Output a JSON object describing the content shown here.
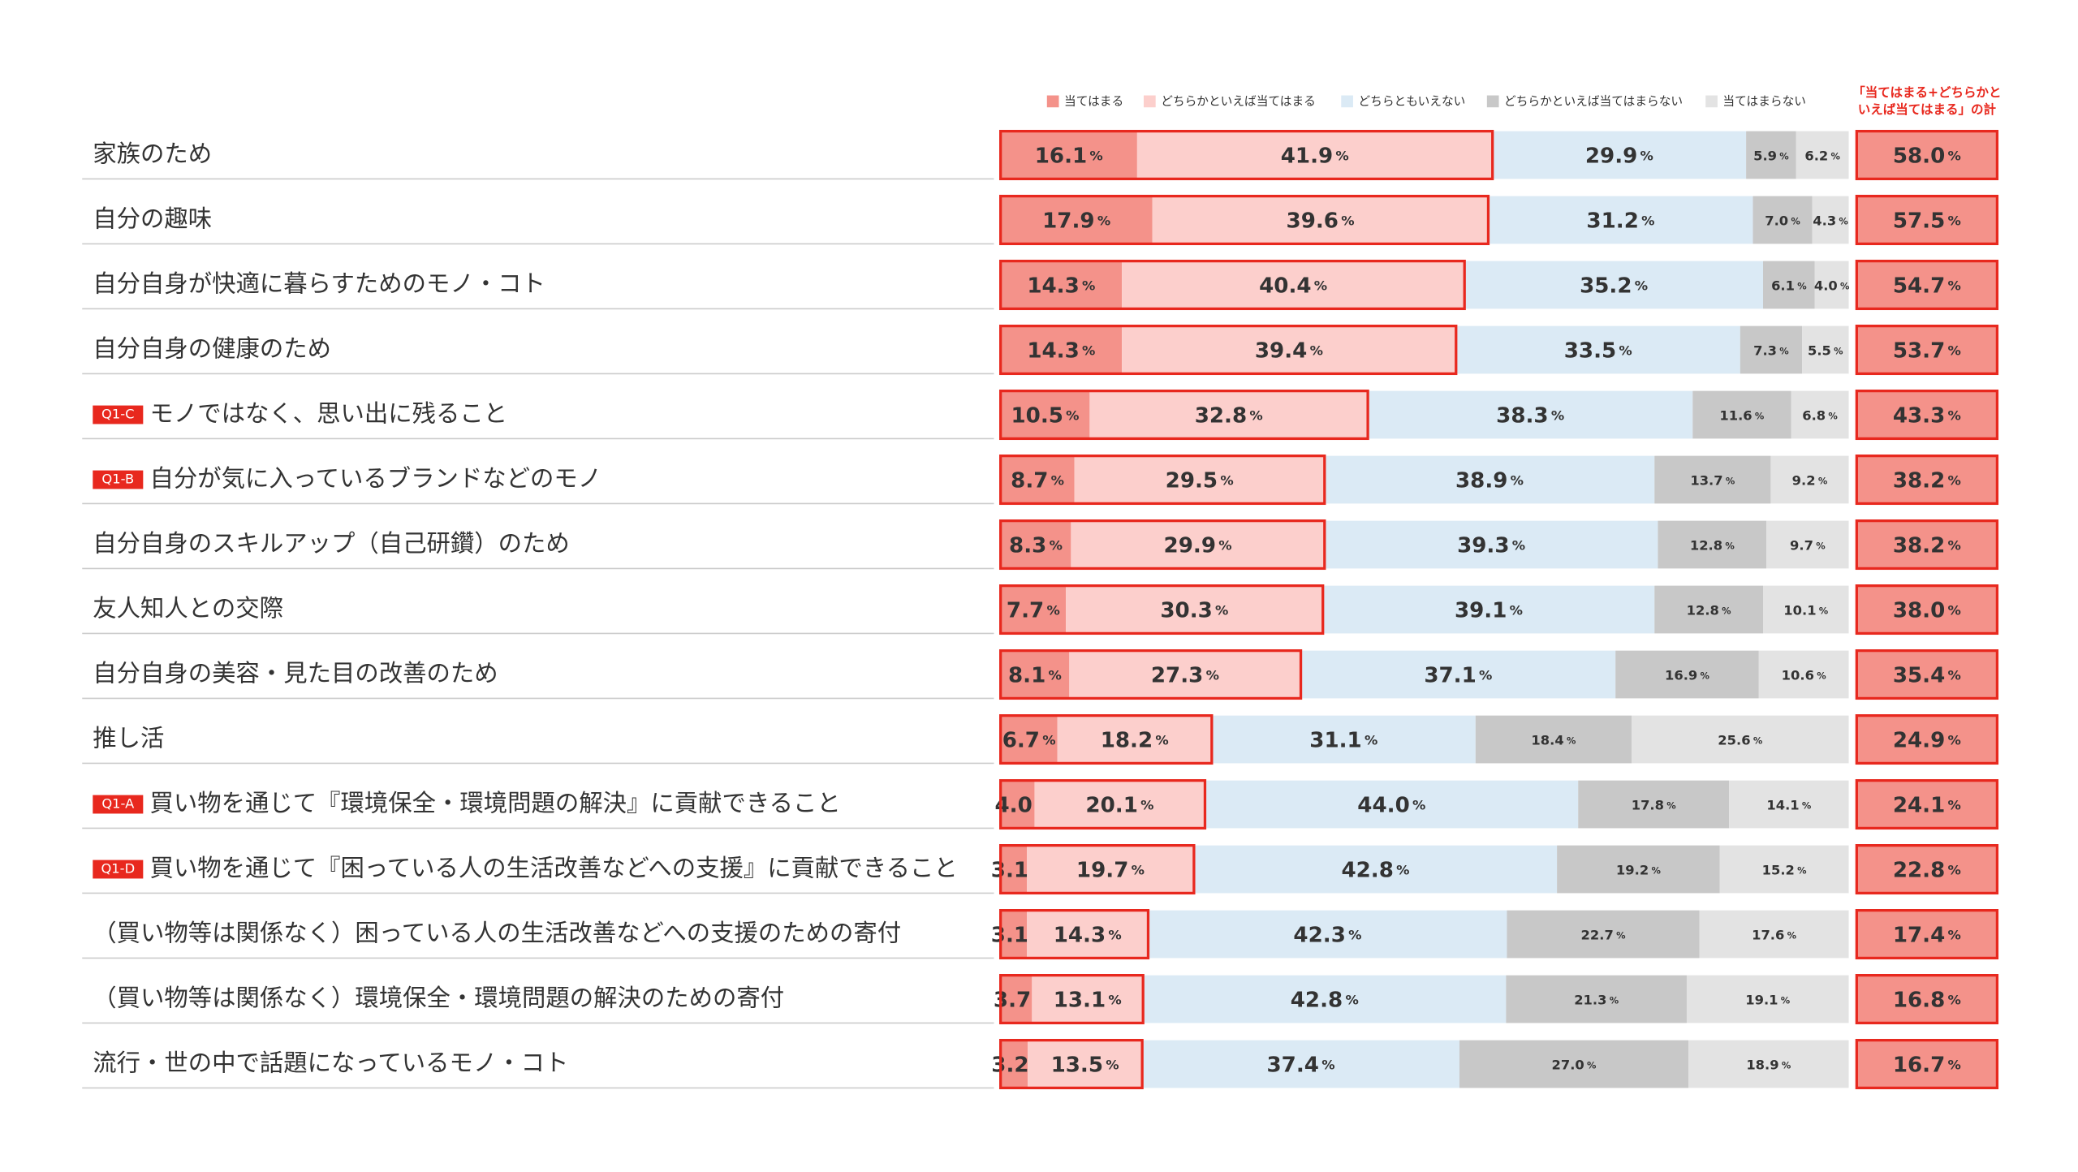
{
  "chart_data": {
    "type": "stacked-bar-horizontal",
    "categories": [
      "家族のため",
      "自分の趣味",
      "自分自身が快適に暮らすためのモノ・コト",
      "自分自身の健康のため",
      "モノではなく、思い出に残ること",
      "自分が気に入っているブランドなどのモノ",
      "自分自身のスキルアップ（自己研鑽）のため",
      "友人知人との交際",
      "自分自身の美容・見た目の改善のため",
      "推し活",
      "買い物を通じて『環境保全・環境問題の解決』に貢献できること",
      "買い物を通じて『困っている人の生活改善などへの支援』に貢献できること",
      "（買い物等は関係なく）困っている人の生活改善などへの支援のための寄付",
      "（買い物等は関係なく）環境保全・環境問題の解決のための寄付",
      "流行・世の中で話題になっているモノ・コト"
    ],
    "tags": [
      null,
      null,
      null,
      null,
      "Q1-C",
      "Q1-B",
      null,
      null,
      null,
      null,
      "Q1-A",
      "Q1-D",
      null,
      null,
      null
    ],
    "unit": "%",
    "xlim": [
      0,
      100
    ],
    "series": [
      {
        "name": "当てはまる",
        "color": "#f4928a",
        "values": [
          16.1,
          17.9,
          14.3,
          14.3,
          10.5,
          8.7,
          8.3,
          7.7,
          8.1,
          6.7,
          4.0,
          3.1,
          3.1,
          3.7,
          3.2
        ],
        "value_labels": [
          "16.1",
          "17.9",
          "14.3",
          "14.3",
          "10.5",
          "8.7",
          "8.3",
          "7.7",
          "8.1",
          "6.7",
          "4.0",
          "3.1",
          "3.1",
          "3.7",
          "3.2"
        ]
      },
      {
        "name": "どちらかといえば当てはまる",
        "color": "#fccfcc",
        "values": [
          41.9,
          39.6,
          40.4,
          39.4,
          32.8,
          29.5,
          29.9,
          30.3,
          27.3,
          18.2,
          20.1,
          19.7,
          14.3,
          13.1,
          13.5
        ],
        "value_labels": [
          "41.9",
          "39.6",
          "40.4",
          "39.4",
          "32.8",
          "29.5",
          "29.9",
          "30.3",
          "27.3",
          "18.2",
          "20.1",
          "19.7",
          "14.3",
          "13.1",
          "13.5"
        ]
      },
      {
        "name": "どちらともいえない",
        "color": "#dbeaf5",
        "values": [
          29.9,
          31.2,
          35.2,
          33.5,
          38.3,
          38.9,
          39.3,
          39.1,
          37.1,
          31.1,
          44.0,
          42.8,
          42.3,
          42.8,
          37.4
        ],
        "value_labels": [
          "29.9",
          "31.2",
          "35.2",
          "33.5",
          "38.3",
          "38.9",
          "39.3",
          "39.1",
          "37.1",
          "31.1",
          "44.0",
          "42.8",
          "42.3",
          "42.8",
          "37.4"
        ]
      },
      {
        "name": "どちらかといえば当てはまらない",
        "color": "#c8c8c8",
        "values": [
          5.9,
          7.0,
          6.1,
          7.3,
          11.6,
          13.7,
          12.8,
          12.8,
          16.9,
          18.4,
          17.8,
          19.2,
          22.7,
          21.3,
          27.0
        ],
        "value_labels": [
          "5.9",
          "7.0",
          "6.1",
          "7.3",
          "11.6",
          "13.7",
          "12.8",
          "12.8",
          "16.9",
          "18.4",
          "17.8",
          "19.2",
          "22.7",
          "21.3",
          "27.0"
        ]
      },
      {
        "name": "当てはまらない",
        "color": "#e3e3e3",
        "values": [
          6.2,
          4.3,
          4.0,
          5.5,
          6.8,
          9.2,
          9.7,
          10.1,
          10.6,
          25.6,
          14.1,
          15.2,
          17.6,
          19.1,
          18.9
        ],
        "value_labels": [
          "6.2",
          "4.3",
          "4.0",
          "5.5",
          "6.8",
          "9.2",
          "9.7",
          "10.1",
          "10.6",
          "25.6",
          "14.1",
          "15.2",
          "17.6",
          "19.1",
          "18.9"
        ]
      }
    ],
    "sum_title": [
      "「当てはまる+どちらかと",
      "いえば当てはまる」の計"
    ],
    "sum_values": [
      58.0,
      57.5,
      54.7,
      53.7,
      43.3,
      38.2,
      38.2,
      38.0,
      35.4,
      24.9,
      24.1,
      22.8,
      17.4,
      16.8,
      16.7
    ],
    "sum_value_labels": [
      "58.0",
      "57.5",
      "54.7",
      "53.7",
      "43.3",
      "38.2",
      "38.2",
      "38.0",
      "35.4",
      "24.9",
      "24.1",
      "22.8",
      "17.4",
      "16.8",
      "16.7"
    ],
    "sum_color": "#f4928a",
    "outline_color": "#e8281e"
  }
}
